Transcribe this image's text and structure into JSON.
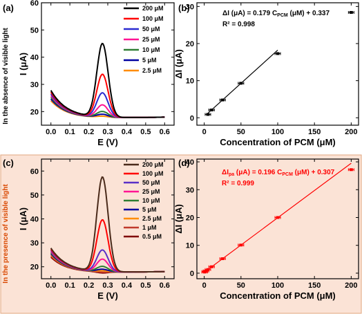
{
  "colors": {
    "bottom_bg": "#fbe3d6",
    "bottom_border": "#e0a77f",
    "fit_a": "#000000",
    "fit_b": "#ff0000",
    "side_label_a": "#000000",
    "side_label_b": "#d94800"
  },
  "panels": {
    "a": {
      "letter": "(a)",
      "side_label": "In the absence of visible light"
    },
    "b": {
      "letter": "(b)",
      "eq_prefix": "ΔI (μA) = 0.179 C",
      "eq_sub": "PCM",
      "eq_suffix": " (μM) + 0.337",
      "r2": "R² = 0.998"
    },
    "c": {
      "letter": "(c)",
      "side_label": "In the presence of visible light"
    },
    "d": {
      "letter": "(d)",
      "eq_prefix": "ΔI",
      "eq_sub1": "pa",
      "eq_mid": " (μA) = 0.196 C",
      "eq_sub2": "PCM",
      "eq_suffix": " (μM) + 0.307",
      "r2": "R² = 0.999"
    }
  },
  "chart_data": [
    {
      "id": "a",
      "type": "line",
      "xlabel": "E (V)",
      "ylabel": "I (μA)",
      "xlim": [
        -0.05,
        0.65
      ],
      "ylim": [
        15,
        60
      ],
      "xticks": [
        0.0,
        0.1,
        0.2,
        0.3,
        0.4,
        0.5,
        0.6
      ],
      "xticklabels": [
        "0.0",
        "0.1",
        "0.2",
        "0.3",
        "0.4",
        "0.5",
        "0.6"
      ],
      "yticks": [
        20,
        30,
        40,
        50,
        60
      ],
      "yticklabels": [
        "20",
        "30",
        "40",
        "50",
        "60"
      ],
      "legend_position": "top-right",
      "series": [
        {
          "name": "200 μM",
          "color": "#000000",
          "peak": 46.0
        },
        {
          "name": "100 μM",
          "color": "#ff0000",
          "peak": 34.7
        },
        {
          "name": "50 μM",
          "color": "#2a2ad0",
          "peak": 27.9
        },
        {
          "name": "25 μM",
          "color": "#ff1493",
          "peak": 23.5
        },
        {
          "name": "10 μM",
          "color": "#2e7d32",
          "peak": 21.1
        },
        {
          "name": "5 μM",
          "color": "#0000a0",
          "peak": 20.1
        },
        {
          "name": "2.5 μM",
          "color": "#ff8c00",
          "peak": 19.4
        }
      ]
    },
    {
      "id": "b",
      "type": "scatter",
      "xlabel": "Concentration of PCM (μM)",
      "ylabel": "ΔI (μA)",
      "xlim": [
        -10,
        210
      ],
      "ylim": [
        -2,
        31
      ],
      "xticks": [
        0,
        50,
        100,
        150,
        200
      ],
      "xticklabels": [
        "0",
        "50",
        "100",
        "150",
        "200"
      ],
      "yticks": [
        0,
        10,
        20,
        30
      ],
      "yticklabels": [
        "0",
        "10",
        "20",
        "30"
      ],
      "x": [
        5,
        10,
        25,
        50,
        100,
        200
      ],
      "y": [
        0.9,
        2.1,
        4.8,
        9.3,
        17.3,
        28.4
      ],
      "fit": {
        "slope": 0.179,
        "intercept": 0.337,
        "x_range": [
          5,
          100
        ]
      }
    },
    {
      "id": "c",
      "type": "line",
      "xlabel": "E (V)",
      "ylabel": "I (μA)",
      "xlim": [
        -0.05,
        0.65
      ],
      "ylim": [
        15,
        65
      ],
      "xticks": [
        0.0,
        0.1,
        0.2,
        0.3,
        0.4,
        0.5,
        0.6
      ],
      "xticklabels": [
        "0.0",
        "0.1",
        "0.2",
        "0.3",
        "0.4",
        "0.5",
        "0.6"
      ],
      "yticks": [
        20,
        30,
        40,
        50,
        60
      ],
      "yticklabels": [
        "20",
        "30",
        "40",
        "50",
        "60"
      ],
      "legend_position": "top-right",
      "series": [
        {
          "name": "200 μM",
          "color": "#4a2a1a",
          "peak": 58.5
        },
        {
          "name": "100 μM",
          "color": "#ff0000",
          "peak": 40.6
        },
        {
          "name": "50 μM",
          "color": "#5a2fc8",
          "peak": 28.0
        },
        {
          "name": "25 μM",
          "color": "#ff1493",
          "peak": 24.2
        },
        {
          "name": "10 μM",
          "color": "#2e7d32",
          "peak": 21.2
        },
        {
          "name": "5 μM",
          "color": "#0000a0",
          "peak": 20.0
        },
        {
          "name": "2.5 μM",
          "color": "#ff8c00",
          "peak": 19.4
        },
        {
          "name": "1 μM",
          "color": "#c0392b",
          "peak": 18.8
        },
        {
          "name": "0.5 μM",
          "color": "#800000",
          "peak": 18.5
        }
      ]
    },
    {
      "id": "d",
      "type": "scatter",
      "xlabel": "Concentration of PCM (μM)",
      "ylabel": "ΔI (μA)",
      "xlim": [
        -10,
        210
      ],
      "ylim": [
        -2,
        41
      ],
      "xticks": [
        0,
        50,
        100,
        150,
        200
      ],
      "xticklabels": [
        "0",
        "50",
        "100",
        "150",
        "200"
      ],
      "yticks": [
        0,
        10,
        20,
        30,
        40
      ],
      "yticklabels": [
        "0",
        "10",
        "20",
        "30",
        "40"
      ],
      "x": [
        0.5,
        1,
        2.5,
        5,
        10,
        25,
        50,
        100,
        200
      ],
      "y": [
        0.4,
        0.6,
        0.8,
        1.3,
        2.3,
        5.2,
        10.1,
        20.0,
        37.2
      ],
      "fit": {
        "slope": 0.196,
        "intercept": 0.307,
        "x_range": [
          0,
          200
        ]
      }
    }
  ]
}
